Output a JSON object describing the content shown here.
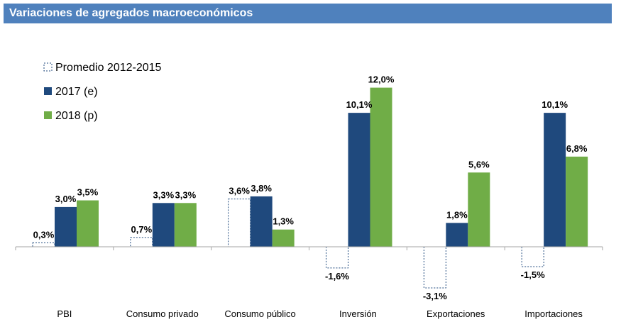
{
  "header": {
    "title": "Variaciones de agregados macroeconómicos"
  },
  "colors": {
    "header_bg": "#4f81bd",
    "series_2017": "#1f497d",
    "series_2018": "#70ad47",
    "promedio_border": "#1f497d"
  },
  "chart_data": {
    "type": "bar",
    "title": "Variaciones de agregados macroeconómicos",
    "xlabel": "",
    "ylabel": "",
    "categories": [
      "PBI",
      "Consumo privado",
      "Consumo público",
      "Inversión",
      "Exportaciones",
      "Importaciones"
    ],
    "series": [
      {
        "name": "Promedio 2012-2015",
        "values": [
          0.3,
          0.7,
          3.6,
          -1.6,
          -3.1,
          -1.5
        ],
        "labels": [
          "0,3%",
          "0,7%",
          "3,6%",
          "-1,6%",
          "-3,1%",
          "-1,5%"
        ],
        "style": "dashed-outline"
      },
      {
        "name": "2017 (e)",
        "values": [
          3.0,
          3.3,
          3.8,
          10.1,
          1.8,
          10.1
        ],
        "labels": [
          "3,0%",
          "3,3%",
          "3,8%",
          "10,1%",
          "1,8%",
          "10,1%"
        ],
        "style": "solid"
      },
      {
        "name": "2018 (p)",
        "values": [
          3.5,
          3.3,
          1.3,
          12.0,
          5.6,
          6.8
        ],
        "labels": [
          "3,5%",
          "3,3%",
          "1,3%",
          "12,0%",
          "5,6%",
          "6,8%"
        ],
        "style": "solid"
      }
    ],
    "legend_position": "top-left",
    "grid": false
  }
}
